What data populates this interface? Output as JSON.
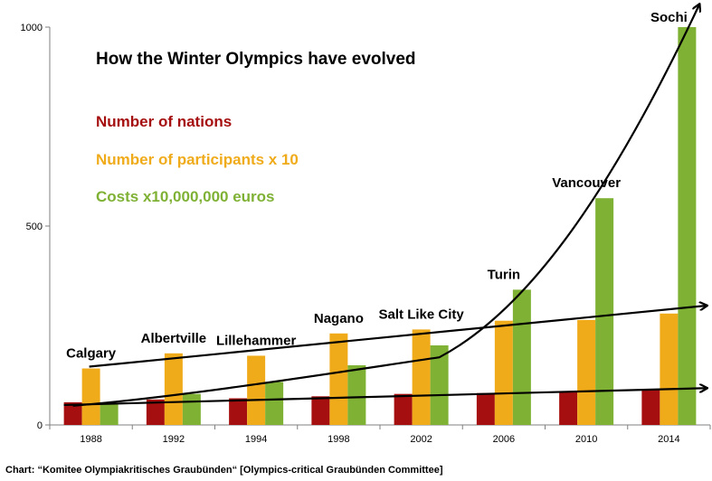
{
  "chart_data": {
    "type": "bar",
    "title": "How the Winter Olympics  have evolved",
    "categories": [
      "1988",
      "1992",
      "1994",
      "1998",
      "2002",
      "2006",
      "2010",
      "2014"
    ],
    "city_labels": [
      "Calgary",
      "Albertville",
      "Lillehammer",
      "Nagano",
      "Salt Like City",
      "Turin",
      "Vancouver",
      "Sochi"
    ],
    "series": [
      {
        "name": "Number of nations",
        "color": "#a50f0f",
        "values": [
          57,
          64,
          67,
          72,
          78,
          80,
          82,
          88
        ]
      },
      {
        "name": "Number of participants  x 10",
        "color": "#f0ab1b",
        "values": [
          142,
          180,
          174,
          230,
          240,
          262,
          264,
          280
        ]
      },
      {
        "name": "Costs  x10,000,000 euros",
        "color": "#7fb135",
        "values": [
          55,
          78,
          108,
          150,
          200,
          340,
          570,
          1000
        ]
      }
    ],
    "ylim": [
      0,
      1000
    ],
    "yticks": [
      0,
      500,
      1000
    ],
    "grid": false,
    "legend_position": "top-left",
    "annotations": "trend arrows drawn over each series"
  },
  "credit": "Chart: “Komitee  Olympiakritisches  Graubünden“  [Olympics-critical  Graubünden  Committee]"
}
